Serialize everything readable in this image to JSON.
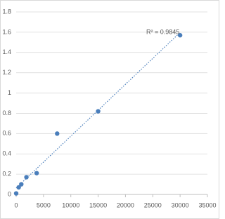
{
  "chart_data": {
    "type": "scatter",
    "annotation": "R² = 0.9845",
    "x": [
      0,
      469,
      938,
      1875,
      3750,
      7500,
      15000,
      30000
    ],
    "series": [
      {
        "color": "#4a7ebb",
        "values": [
          0.01,
          0.07,
          0.1,
          0.17,
          0.21,
          0.6,
          0.82,
          1.57
        ]
      }
    ],
    "xlim": [
      0,
      35000
    ],
    "xticks": [
      0,
      5000,
      10000,
      15000,
      20000,
      25000,
      30000,
      35000
    ],
    "ylim": [
      0,
      1.8
    ],
    "yticks": [
      0,
      0.2,
      0.4,
      0.6,
      0.8,
      1,
      1.2,
      1.4,
      1.6,
      1.8
    ],
    "grid": true,
    "trendline": "linear"
  }
}
